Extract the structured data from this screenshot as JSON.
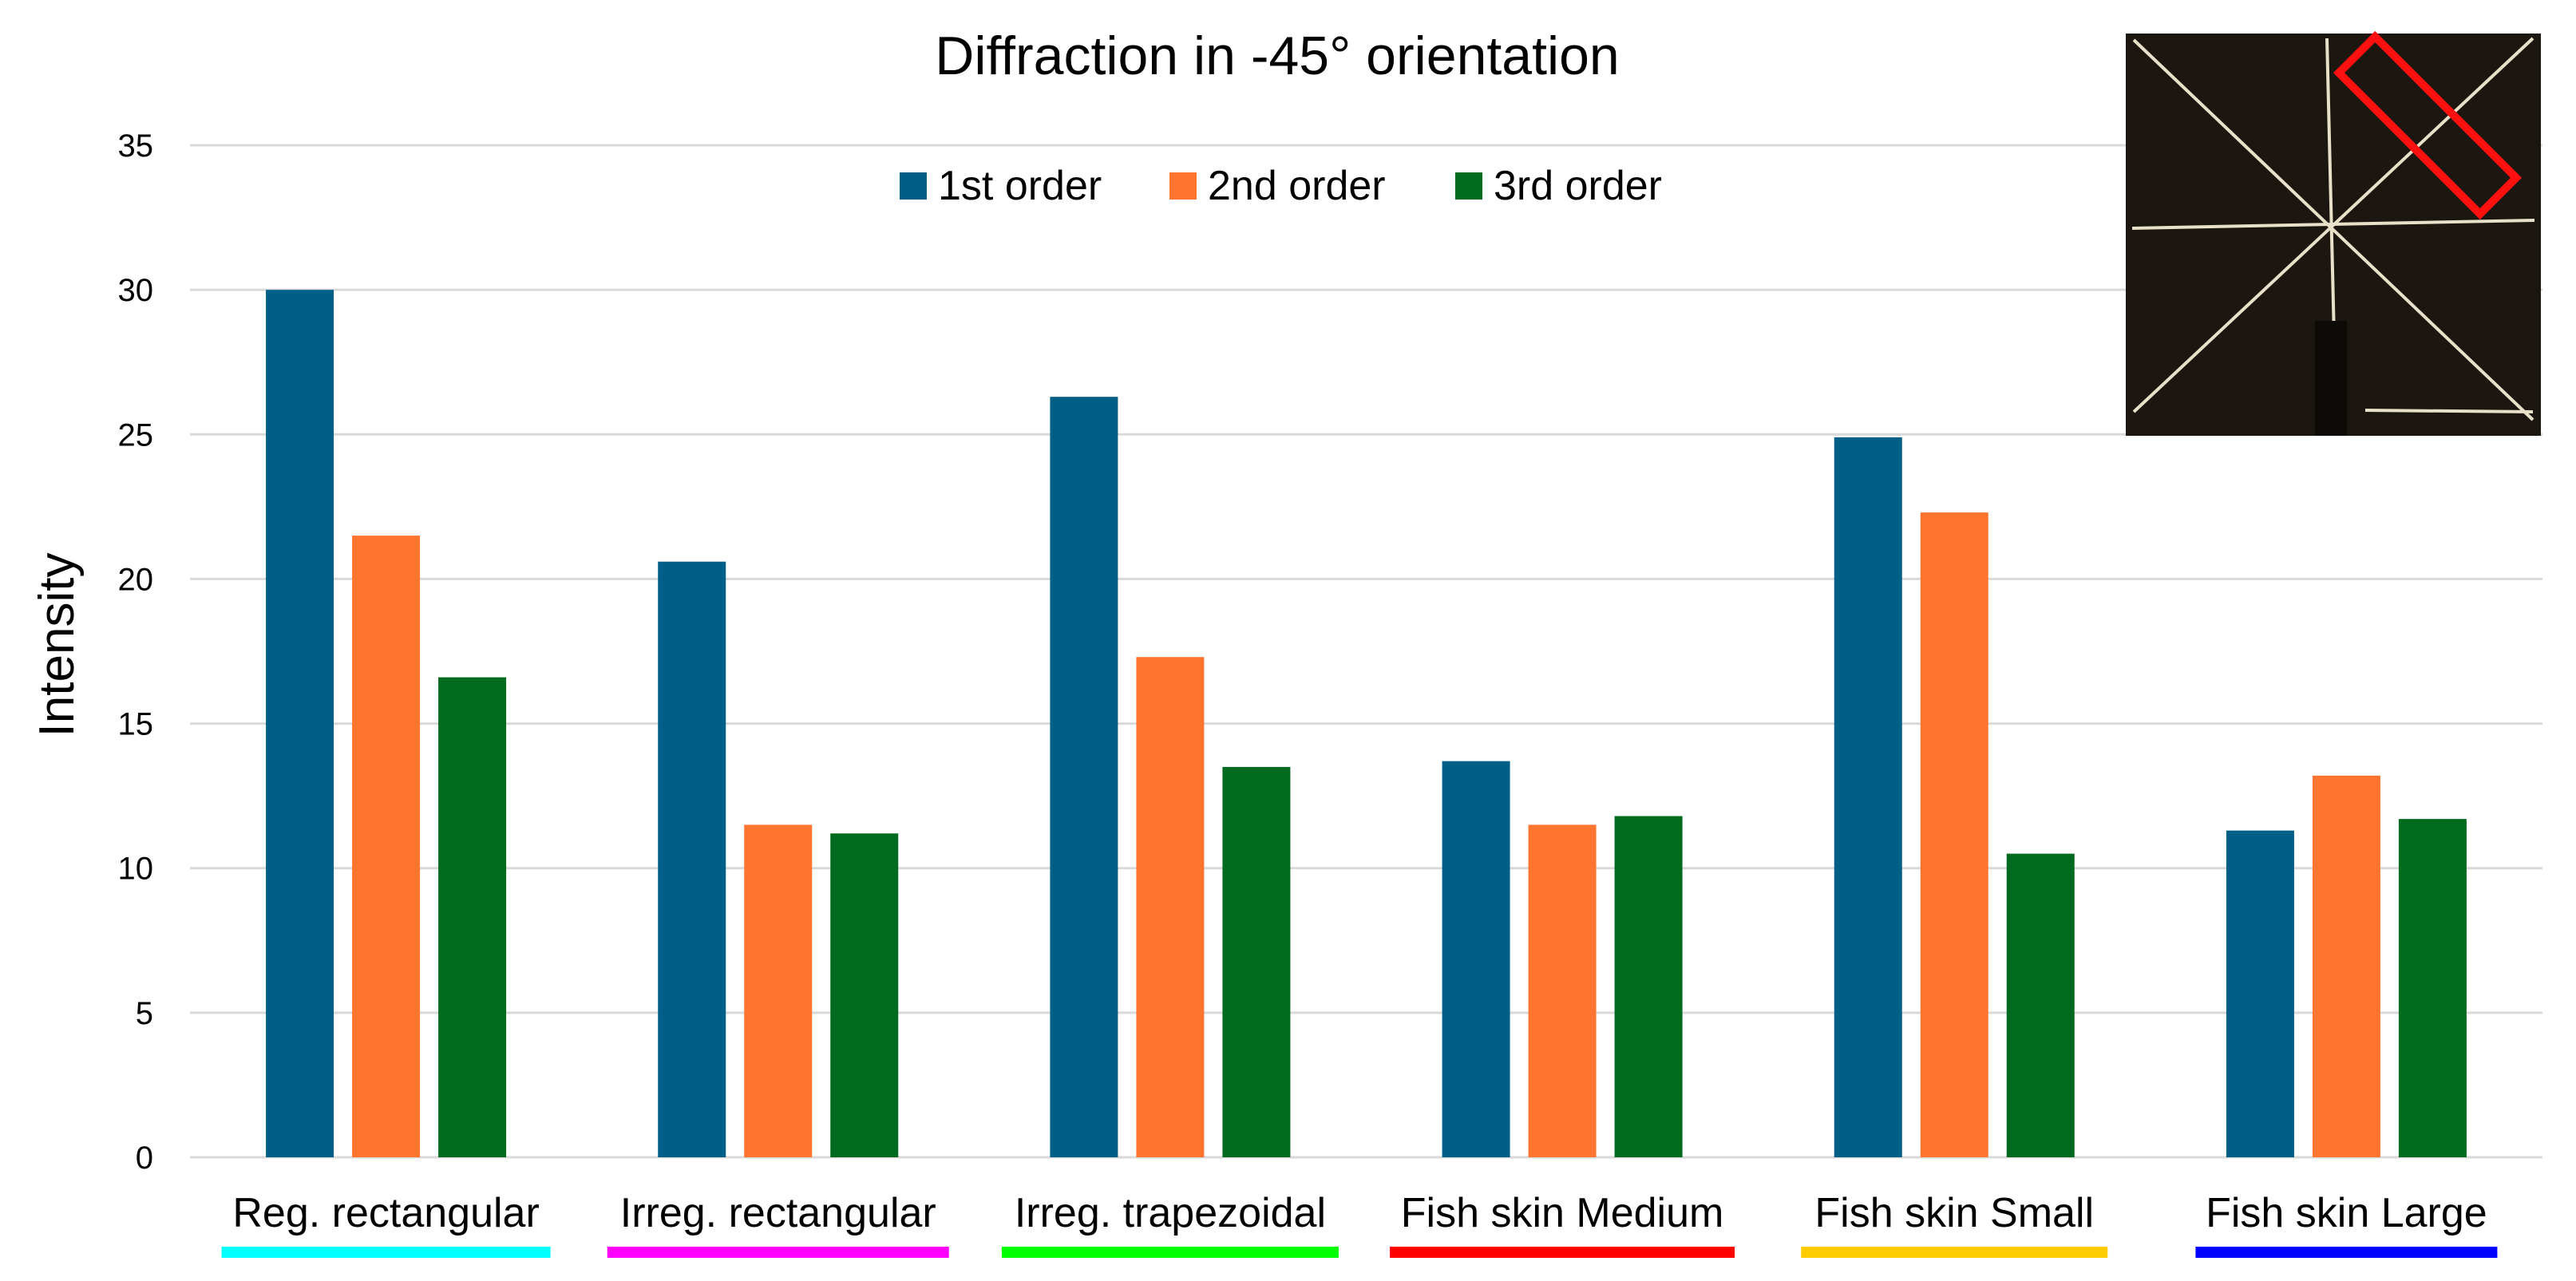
{
  "chart_data": {
    "type": "bar",
    "title": "Diffraction in -45° orientation",
    "xlabel": "",
    "ylabel": "Intensity",
    "ylim": [
      0,
      35
    ],
    "yticks": [
      0,
      5,
      10,
      15,
      20,
      25,
      30,
      35
    ],
    "grid": true,
    "legend_position": "top-center",
    "categories": [
      "Reg. rectangular",
      "Irreg. rectangular",
      "Irreg. trapezoidal",
      "Fish skin Medium",
      "Fish skin Small",
      "Fish skin Large"
    ],
    "category_underline_colors": [
      "#00ffff",
      "#ff00ff",
      "#00ff00",
      "#ff0000",
      "#ffcc00",
      "#0000ff"
    ],
    "series": [
      {
        "name": "1st order",
        "color": "#005f87",
        "values": [
          30.0,
          20.6,
          26.3,
          13.7,
          24.9,
          11.3
        ]
      },
      {
        "name": "2nd order",
        "color": "#ff7530",
        "values": [
          21.5,
          11.5,
          17.3,
          11.5,
          22.3,
          13.2
        ]
      },
      {
        "name": "3rd order",
        "color": "#006b1e",
        "values": [
          16.6,
          11.2,
          13.5,
          11.8,
          10.5,
          11.7
        ]
      }
    ],
    "inset": {
      "description_icon": "diffraction-pattern-photo",
      "background": "#1b1710",
      "line_color": "#e8e0c8",
      "highlight_color": "#ff1010"
    }
  }
}
